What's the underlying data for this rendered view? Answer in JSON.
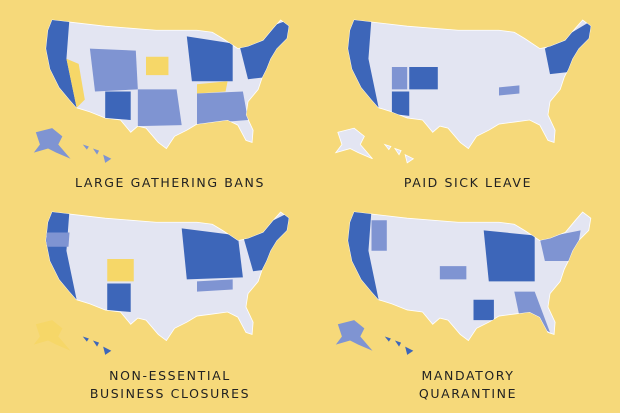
{
  "maps": [
    {
      "label_lines": [
        "LARGE GATHERING BANS"
      ]
    },
    {
      "label_lines": [
        "PAID SICK LEAVE"
      ]
    },
    {
      "label_lines": [
        "NON-ESSENTIAL",
        "BUSINESS CLOSURES"
      ]
    },
    {
      "label_lines": [
        "MANDATORY",
        "QUARANTINE"
      ]
    }
  ]
}
